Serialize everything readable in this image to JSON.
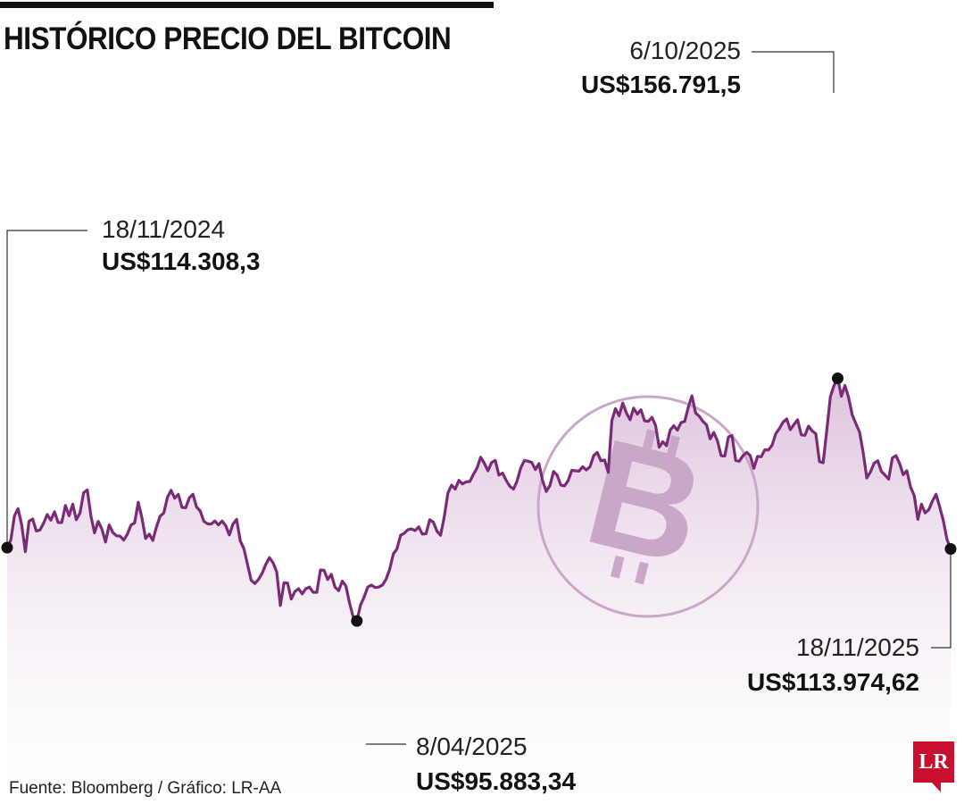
{
  "title": "HISTÓRICO PRECIO DEL BITCOIN",
  "source": "Fuente: Bloomberg / Gráfico: LR-AA",
  "logo_text": "LR",
  "colors": {
    "line": "#7b2a78",
    "area_top": "#d7b7d6",
    "area_bottom": "#ffffff",
    "watermark": "#c9a7c8",
    "brand": "#c8102e"
  },
  "watermark_icon": "bitcoin-icon",
  "chart_data": {
    "type": "area",
    "title": "HISTÓRICO PRECIO DEL BITCOIN",
    "xlabel": "",
    "ylabel": "",
    "x_range": [
      "18/11/2024",
      "18/11/2025"
    ],
    "ylim": [
      90000,
      180000
    ],
    "grid": false,
    "series": [
      {
        "values": [
          114308,
          116200,
          122300,
          124100,
          120000,
          113300,
          120900,
          121500,
          118500,
          118700,
          120400,
          122600,
          121200,
          123300,
          120600,
          120600,
          124900,
          122300,
          125200,
          121300,
          123000,
          128100,
          128800,
          122200,
          118000,
          120900,
          119000,
          115700,
          120000,
          118100,
          117300,
          117200,
          116200,
          117700,
          120000,
          120500,
          125700,
          121800,
          116600,
          117700,
          116100,
          119500,
          122200,
          123000,
          126900,
          128700,
          126700,
          127700,
          124400,
          124300,
          126800,
          127700,
          124500,
          123500,
          120900,
          120300,
          120200,
          121000,
          120000,
          121000,
          119800,
          117500,
          120200,
          121400,
          116000,
          114000,
          110000,
          106100,
          105300,
          106300,
          107900,
          110100,
          111800,
          110500,
          108200,
          99800,
          105500,
          105400,
          101400,
          103300,
          104000,
          102700,
          104000,
          104400,
          103100,
          103100,
          108700,
          108600,
          106300,
          107600,
          104400,
          103500,
          105900,
          104700,
          100400,
          96900,
          95900,
          99900,
          101900,
          104400,
          104900,
          104300,
          104400,
          104900,
          106300,
          108800,
          112700,
          114000,
          117400,
          117900,
          118800,
          119000,
          118600,
          119500,
          117700,
          117800,
          121300,
          120700,
          118400,
          117400,
          122000,
          128000,
          130000,
          129000,
          131200,
          130300,
          130800,
          130900,
          132700,
          134300,
          137000,
          135500,
          133600,
          135700,
          136200,
          132500,
          133000,
          131200,
          129700,
          129000,
          131100,
          134300,
          136200,
          136000,
          135700,
          133900,
          135400,
          131100,
          128400,
          129900,
          133400,
          132500,
          130000,
          129800,
          131100,
          133700,
          133600,
          133500,
          134600,
          133800,
          134600,
          137400,
          138200,
          136100,
          136300,
          133200,
          146200,
          149200,
          147400,
          150600,
          148100,
          146400,
          149300,
          147800,
          148900,
          146100,
          146000,
          147000,
          145000,
          139500,
          140900,
          139900,
          143800,
          144900,
          143800,
          145700,
          146000,
          149600,
          152400,
          148100,
          147300,
          146000,
          145100,
          141600,
          143200,
          141100,
          137400,
          137300,
          142100,
          142400,
          136200,
          136000,
          137400,
          138200,
          137400,
          134200,
          137200,
          137100,
          138900,
          138800,
          140000,
          142900,
          144200,
          145800,
          146600,
          143900,
          145200,
          146400,
          142600,
          142500,
          144800,
          143600,
          142900,
          135900,
          135600,
          143600,
          152200,
          155000,
          156791,
          152300,
          155000,
          152000,
          147600,
          145400,
          143300,
          138100,
          131800,
          133300,
          135500,
          136100,
          133400,
          132500,
          131500,
          136800,
          137400,
          135400,
          132600,
          133600,
          129500,
          127400,
          121400,
          125200,
          123000,
          123800,
          126000,
          127700,
          124500,
          121100,
          116400,
          113975
        ]
      }
    ],
    "annotations": [
      {
        "date": "18/11/2024",
        "value": "US$114.308,3",
        "point_index": 0
      },
      {
        "date": "8/04/2025",
        "value": "US$95.883,34",
        "point_index": 96
      },
      {
        "date": "6/10/2025",
        "value": "US$156.791,5",
        "point_index": 228
      },
      {
        "date": "18/11/2025",
        "value": "US$113.974,62",
        "point_index": 259
      }
    ]
  }
}
